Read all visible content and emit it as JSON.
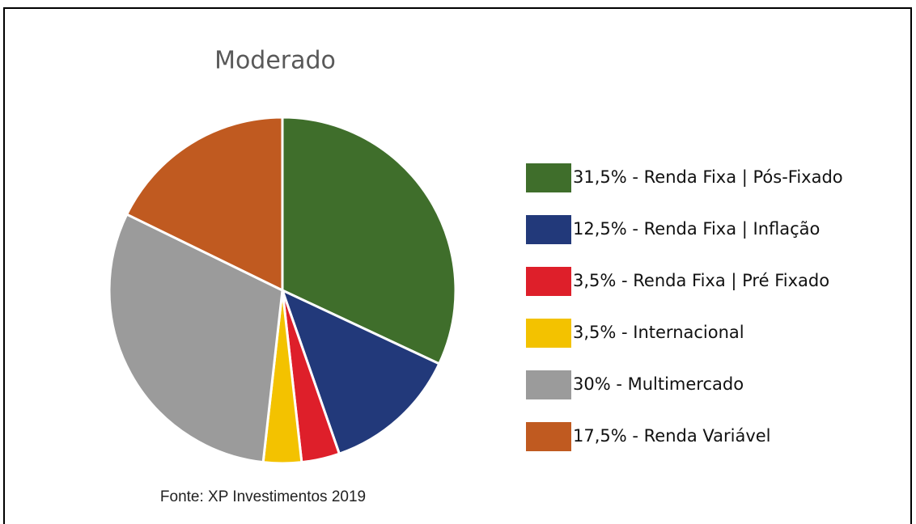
{
  "chart_data": {
    "type": "pie",
    "title": "Moderado",
    "source": "Fonte: XP Investimentos 2019",
    "categories": [
      "31,5% - Renda Fixa | Pós-Fixado",
      "12,5% - Renda Fixa | Inflação",
      "3,5% - Renda Fixa | Pré Fixado",
      "3,5% - Internacional",
      "30% - Multimercado",
      "17,5% - Renda Variável"
    ],
    "values": [
      31.5,
      12.5,
      3.5,
      3.5,
      30,
      17.5
    ],
    "colors": [
      "#3f6e2b",
      "#22397a",
      "#de1f2a",
      "#f3c200",
      "#9b9b9b",
      "#c05a20"
    ],
    "legend": "right"
  }
}
